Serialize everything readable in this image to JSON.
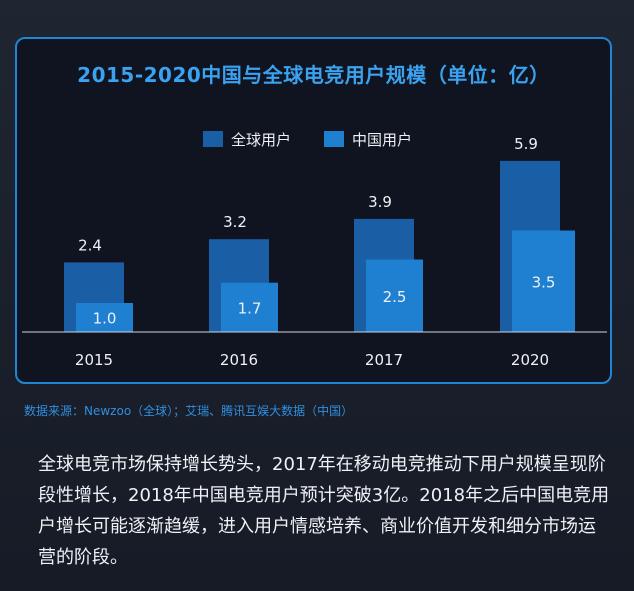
{
  "chart_data": {
    "type": "bar",
    "title": "2015-2020中国与全球电竞用户规模（单位：亿）",
    "categories": [
      "2015",
      "2016",
      "2017",
      "2020"
    ],
    "series": [
      {
        "name": "全球用户",
        "values": [
          2.4,
          3.2,
          3.9,
          5.9
        ],
        "color": "#1a5fa6"
      },
      {
        "name": "中国用户",
        "values": [
          1.0,
          1.7,
          2.5,
          3.5
        ],
        "color": "#1f7fd0"
      }
    ],
    "value_labels": {
      "global": [
        "2.4",
        "3.2",
        "3.9",
        "5.9"
      ],
      "china": [
        "1.0",
        "1.7",
        "2.5",
        "3.5"
      ]
    },
    "ylim": [
      0,
      6
    ],
    "grid": false,
    "legend": "top-center",
    "xlabel": "",
    "ylabel": ""
  },
  "source": "数据来源：Newzoo（全球）；艾瑞、腾讯互娱大数据（中国）",
  "description": "全球电竞市场保持增长势头，2017年在移动电竞推动下用户规模呈现阶段性增长，2018年中国电竞用户预计突破3亿。2018年之后中国电竞用户增长可能逐渐趋缓，进入用户情感培养、商业价值开发和细分市场运营的阶段。"
}
